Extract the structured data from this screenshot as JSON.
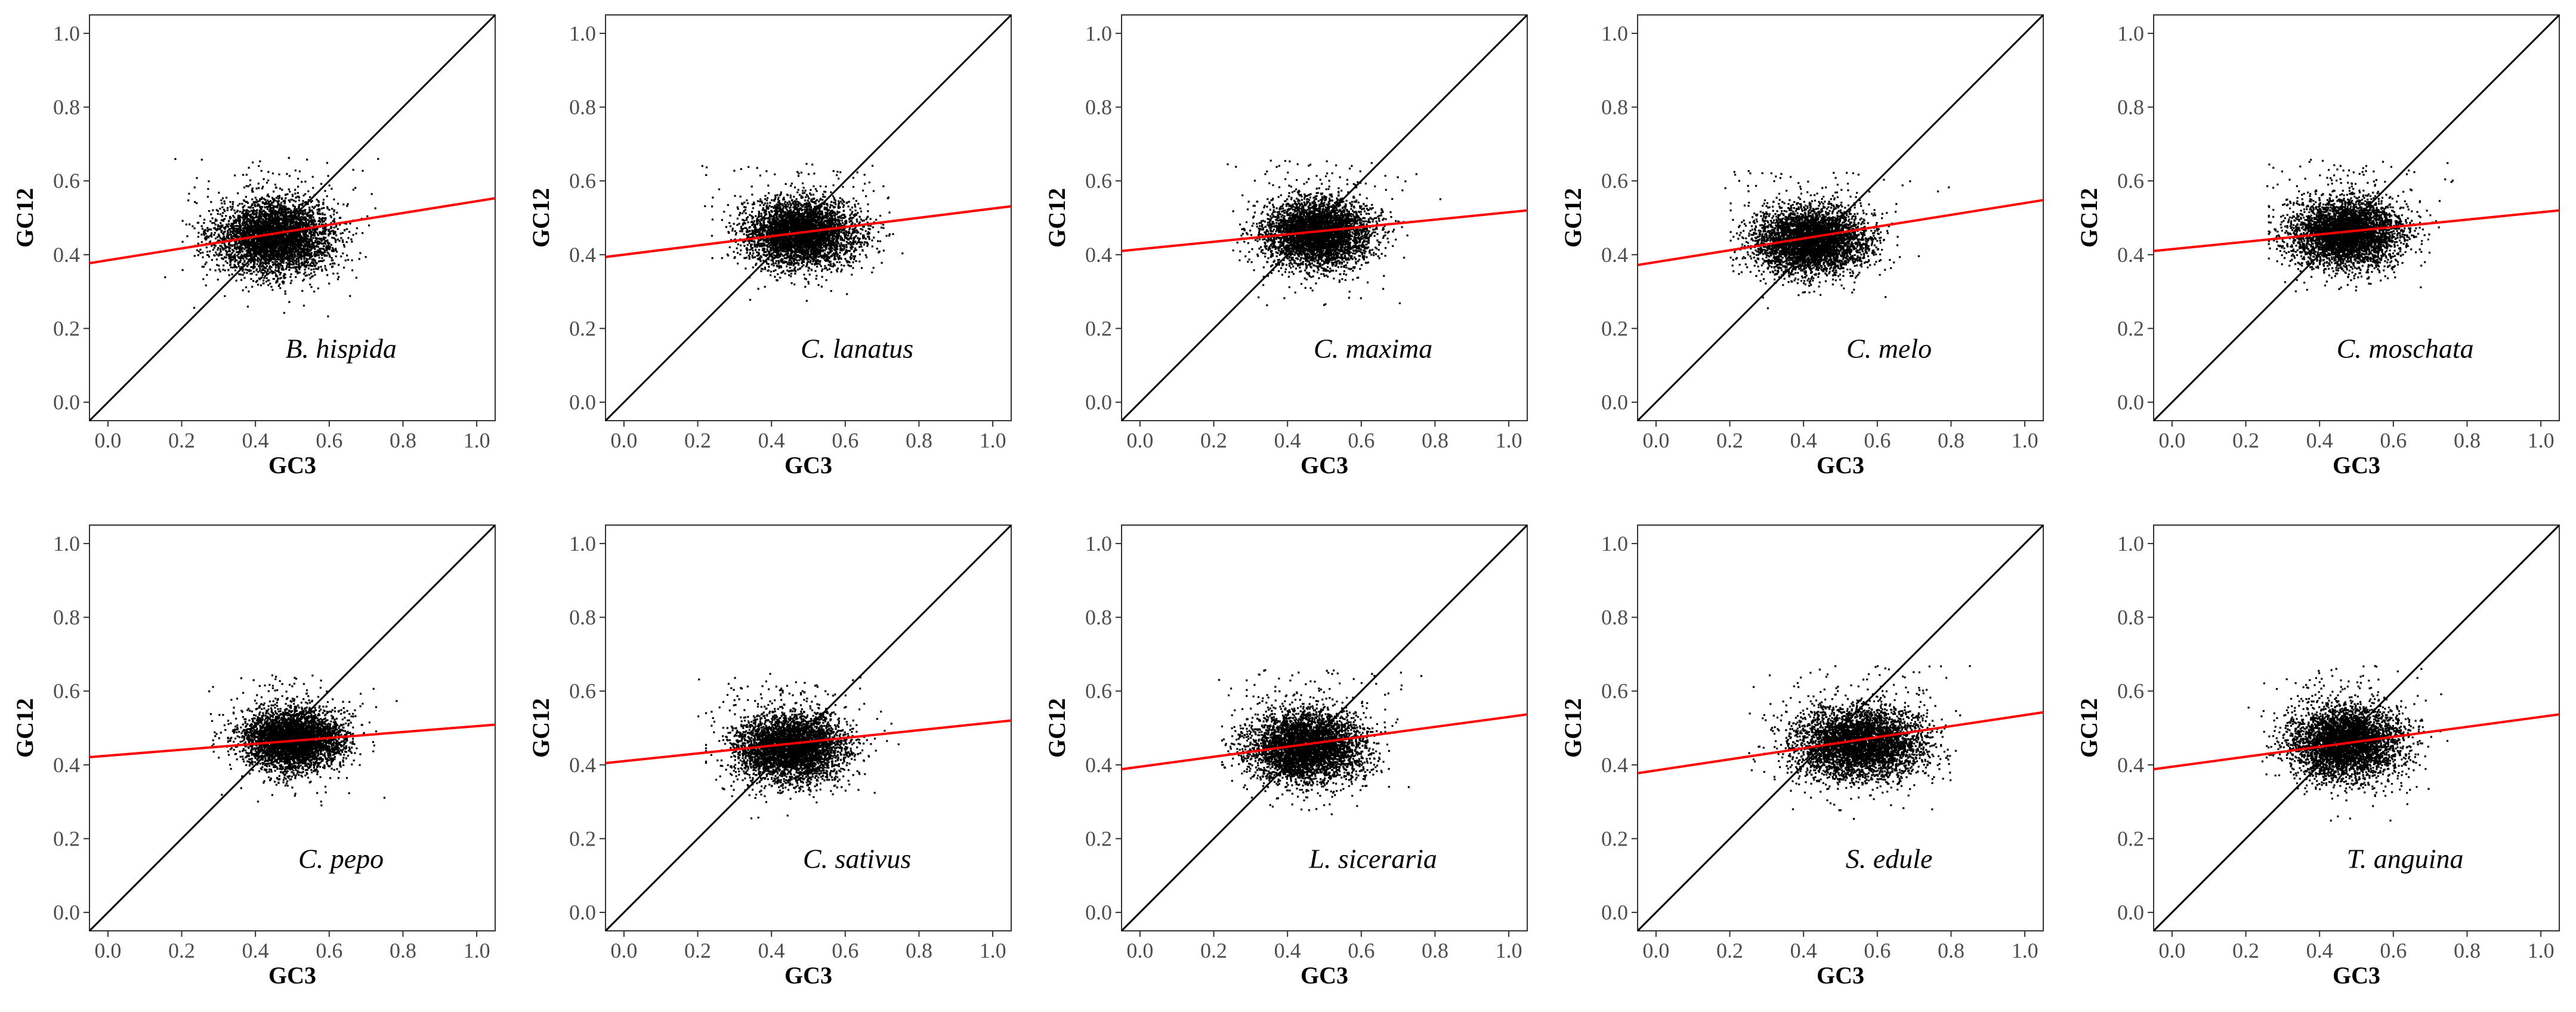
{
  "figure": {
    "xlabel": "GC3",
    "ylabel": "GC12",
    "xlim": [
      -0.05,
      1.05
    ],
    "ylim": [
      -0.05,
      1.05
    ],
    "tick_values": [
      0.0,
      0.2,
      0.4,
      0.6,
      0.8,
      1.0
    ],
    "tick_labels": [
      "0.0",
      "0.2",
      "0.4",
      "0.6",
      "0.8",
      "1.0"
    ],
    "diagonal_color": "#000000",
    "regression_color": "#ff0000",
    "point_color": "#000000"
  },
  "chart_data": [
    {
      "type": "scatter",
      "species": "B. hispida",
      "xlabel": "GC3",
      "ylabel": "GC12",
      "xlim": [
        -0.05,
        1.05
      ],
      "ylim": [
        -0.05,
        1.05
      ],
      "cloud": {
        "x_center": 0.45,
        "y_center": 0.45,
        "x_range": [
          0.2,
          0.8
        ],
        "y_range": [
          0.27,
          0.68
        ]
      },
      "regression": {
        "intercept": 0.385,
        "slope": 0.16
      }
    },
    {
      "type": "scatter",
      "species": "C. lanatus",
      "xlabel": "GC3",
      "ylabel": "GC12",
      "xlim": [
        -0.05,
        1.05
      ],
      "ylim": [
        -0.05,
        1.05
      ],
      "cloud": {
        "x_center": 0.48,
        "y_center": 0.46,
        "x_range": [
          0.22,
          0.78
        ],
        "y_range": [
          0.3,
          0.66
        ]
      },
      "regression": {
        "intercept": 0.4,
        "slope": 0.125
      }
    },
    {
      "type": "scatter",
      "species": "C. maxima",
      "xlabel": "GC3",
      "ylabel": "GC12",
      "xlim": [
        -0.05,
        1.05
      ],
      "ylim": [
        -0.05,
        1.05
      ],
      "cloud": {
        "x_center": 0.48,
        "y_center": 0.46,
        "x_range": [
          0.25,
          0.78
        ],
        "y_range": [
          0.3,
          0.68
        ]
      },
      "regression": {
        "intercept": 0.415,
        "slope": 0.1
      }
    },
    {
      "type": "scatter",
      "species": "C. melo",
      "xlabel": "GC3",
      "ylabel": "GC12",
      "xlim": [
        -0.05,
        1.05
      ],
      "ylim": [
        -0.05,
        1.05
      ],
      "cloud": {
        "x_center": 0.42,
        "y_center": 0.44,
        "x_range": [
          0.2,
          0.76
        ],
        "y_range": [
          0.3,
          0.66
        ]
      },
      "regression": {
        "intercept": 0.38,
        "slope": 0.16
      }
    },
    {
      "type": "scatter",
      "species": "C. moschata",
      "xlabel": "GC3",
      "ylabel": "GC12",
      "xlim": [
        -0.05,
        1.05
      ],
      "ylim": [
        -0.05,
        1.05
      ],
      "cloud": {
        "x_center": 0.47,
        "y_center": 0.46,
        "x_range": [
          0.26,
          0.8
        ],
        "y_range": [
          0.3,
          0.68
        ]
      },
      "regression": {
        "intercept": 0.415,
        "slope": 0.1
      }
    },
    {
      "type": "scatter",
      "species": "C. pepo",
      "xlabel": "GC3",
      "ylabel": "GC12",
      "xlim": [
        -0.05,
        1.05
      ],
      "ylim": [
        -0.05,
        1.05
      ],
      "cloud": {
        "x_center": 0.5,
        "y_center": 0.47,
        "x_range": [
          0.28,
          0.78
        ],
        "y_range": [
          0.32,
          0.66
        ]
      },
      "regression": {
        "intercept": 0.425,
        "slope": 0.08
      }
    },
    {
      "type": "scatter",
      "species": "C. sativus",
      "xlabel": "GC3",
      "ylabel": "GC12",
      "xlim": [
        -0.05,
        1.05
      ],
      "ylim": [
        -0.05,
        1.05
      ],
      "cloud": {
        "x_center": 0.45,
        "y_center": 0.45,
        "x_range": [
          0.22,
          0.76
        ],
        "y_range": [
          0.28,
          0.66
        ]
      },
      "regression": {
        "intercept": 0.41,
        "slope": 0.105
      }
    },
    {
      "type": "scatter",
      "species": "L. siceraria",
      "xlabel": "GC3",
      "ylabel": "GC12",
      "xlim": [
        -0.05,
        1.05
      ],
      "ylim": [
        -0.05,
        1.05
      ],
      "cloud": {
        "x_center": 0.45,
        "y_center": 0.45,
        "x_range": [
          0.22,
          0.8
        ],
        "y_range": [
          0.28,
          0.68
        ]
      },
      "regression": {
        "intercept": 0.395,
        "slope": 0.135
      }
    },
    {
      "type": "scatter",
      "species": "S. edule",
      "xlabel": "GC3",
      "ylabel": "GC12",
      "xlim": [
        -0.05,
        1.05
      ],
      "ylim": [
        -0.05,
        1.05
      ],
      "cloud": {
        "x_center": 0.55,
        "y_center": 0.46,
        "x_range": [
          0.25,
          0.9
        ],
        "y_range": [
          0.28,
          0.68
        ]
      },
      "regression": {
        "intercept": 0.385,
        "slope": 0.15
      }
    },
    {
      "type": "scatter",
      "species": "T. anguina",
      "xlabel": "GC3",
      "ylabel": "GC12",
      "xlim": [
        -0.05,
        1.05
      ],
      "ylim": [
        -0.05,
        1.05
      ],
      "cloud": {
        "x_center": 0.47,
        "y_center": 0.46,
        "x_range": [
          0.24,
          0.8
        ],
        "y_range": [
          0.28,
          0.68
        ]
      },
      "regression": {
        "intercept": 0.395,
        "slope": 0.135
      }
    }
  ]
}
